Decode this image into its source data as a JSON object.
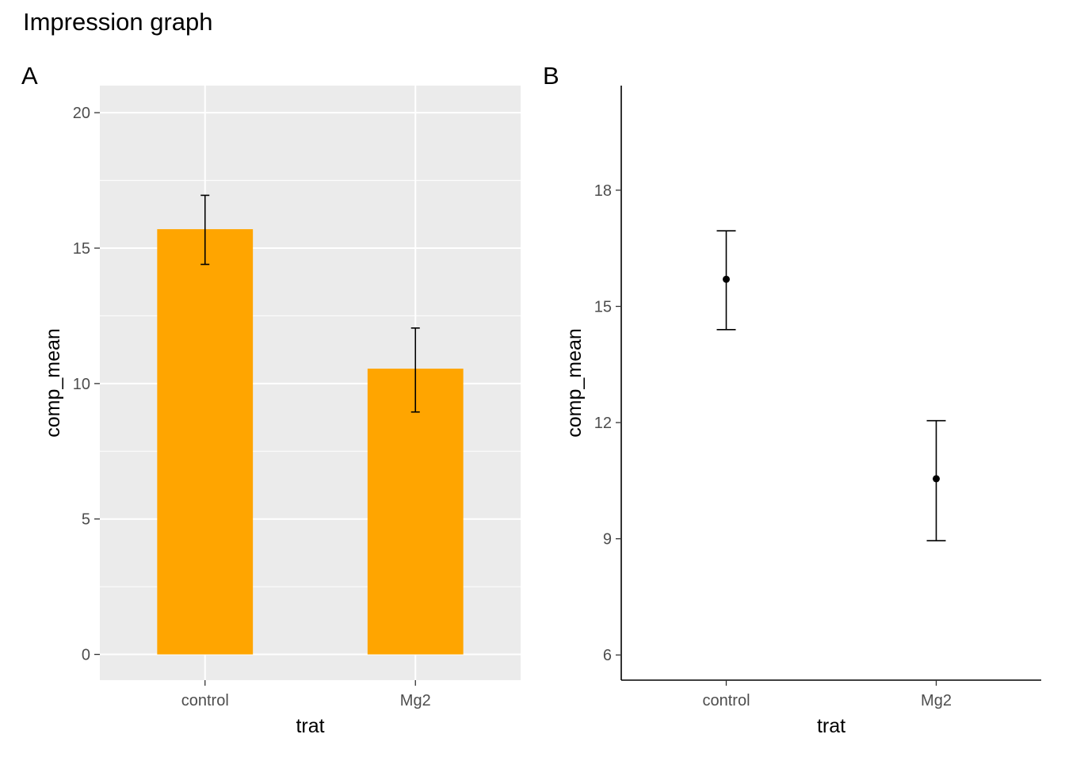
{
  "title": "Impression graph",
  "chart_data": [
    {
      "panel": "A",
      "type": "bar",
      "categories": [
        "control",
        "Mg2"
      ],
      "values": [
        15.7,
        10.55
      ],
      "error_low": [
        14.4,
        8.95
      ],
      "error_high": [
        16.95,
        12.05
      ],
      "xlabel": "trat",
      "ylabel": "comp_mean",
      "ylim": [
        -0.95,
        21.0
      ],
      "yticks": [
        0,
        5,
        10,
        15,
        20
      ],
      "ytick_labels": [
        "0",
        "5",
        "10",
        "15",
        "20"
      ],
      "grid": true,
      "bar_color": "#FFA500",
      "panel_background": "#EBEBEB"
    },
    {
      "panel": "B",
      "type": "scatter",
      "categories": [
        "control",
        "Mg2"
      ],
      "values": [
        15.7,
        10.55
      ],
      "error_low": [
        14.4,
        8.95
      ],
      "error_high": [
        16.95,
        12.05
      ],
      "xlabel": "trat",
      "ylabel": "comp_mean",
      "ylim": [
        5.35,
        20.7
      ],
      "yticks": [
        6,
        9,
        12,
        15,
        18
      ],
      "ytick_labels": [
        "6",
        "9",
        "12",
        "15",
        "18"
      ],
      "grid": false,
      "point_color": "#000000"
    }
  ]
}
